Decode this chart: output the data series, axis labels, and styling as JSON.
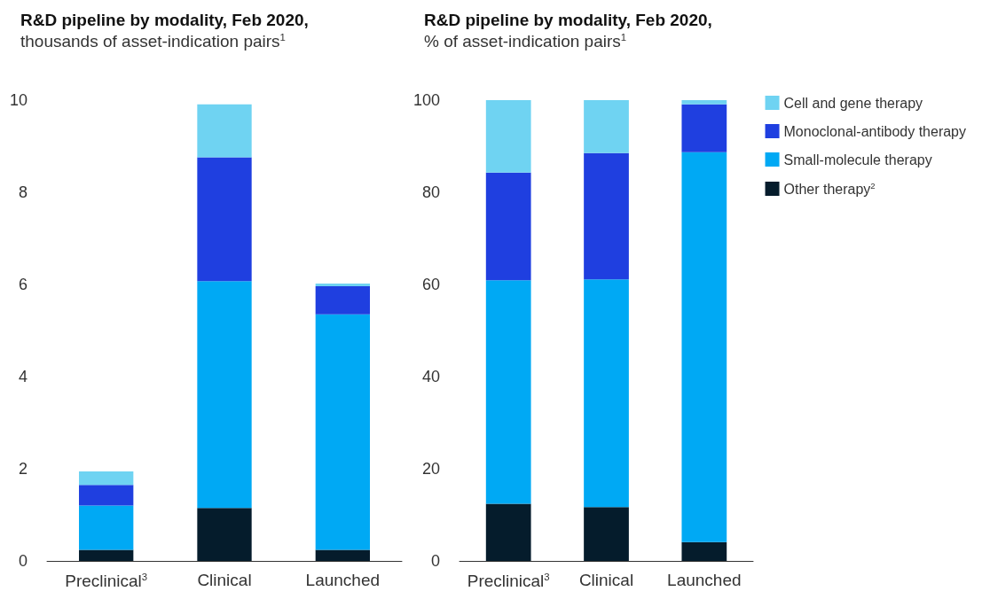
{
  "chart_data": [
    {
      "type": "bar",
      "stacked": true,
      "title": "R&D pipeline by modality, Feb 2020,",
      "subtitle": "thousands of asset-indication pairs$^{1}$",
      "categories": [
        "Preclinical$^{3}$",
        "Clinical",
        "Launched"
      ],
      "ylim": [
        0,
        10
      ],
      "yticks": [
        0,
        2,
        4,
        6,
        8,
        10
      ],
      "grid": false,
      "legend": false,
      "series": [
        {
          "color": "#051c2c",
          "values": [
            0.24,
            1.15,
            0.24
          ]
        },
        {
          "color": "#00a9f4",
          "values": [
            0.96,
            4.92,
            5.11
          ]
        },
        {
          "color": "#1f3fe0",
          "values": [
            0.45,
            2.69,
            0.61
          ]
        },
        {
          "color": "#6fd3f2",
          "values": [
            0.29,
            1.15,
            0.06
          ]
        }
      ]
    },
    {
      "type": "bar",
      "stacked": true,
      "title": "R&D pipeline by modality, Feb 2020,",
      "subtitle": "% of asset-indication pairs$^{1}$",
      "categories": [
        "Preclinical$^{3}$",
        "Clinical",
        "Launched"
      ],
      "ylim": [
        0,
        100
      ],
      "yticks": [
        0,
        20,
        40,
        60,
        80,
        100
      ],
      "grid": false,
      "legend": "right",
      "series": [
        {
          "name": "Other therapy$^{2}$",
          "color": "#051c2c",
          "values": [
            12.4,
            11.7,
            4.1
          ]
        },
        {
          "name": "Small-molecule therapy",
          "color": "#00a9f4",
          "values": [
            48.5,
            49.4,
            84.6
          ]
        },
        {
          "name": "Monoclonal-antibody therapy",
          "color": "#1f3fe0",
          "values": [
            23.4,
            27.4,
            10.4
          ]
        },
        {
          "name": "Cell and gene therapy",
          "color": "#6fd3f2",
          "values": [
            15.7,
            11.5,
            0.9
          ]
        }
      ]
    }
  ]
}
